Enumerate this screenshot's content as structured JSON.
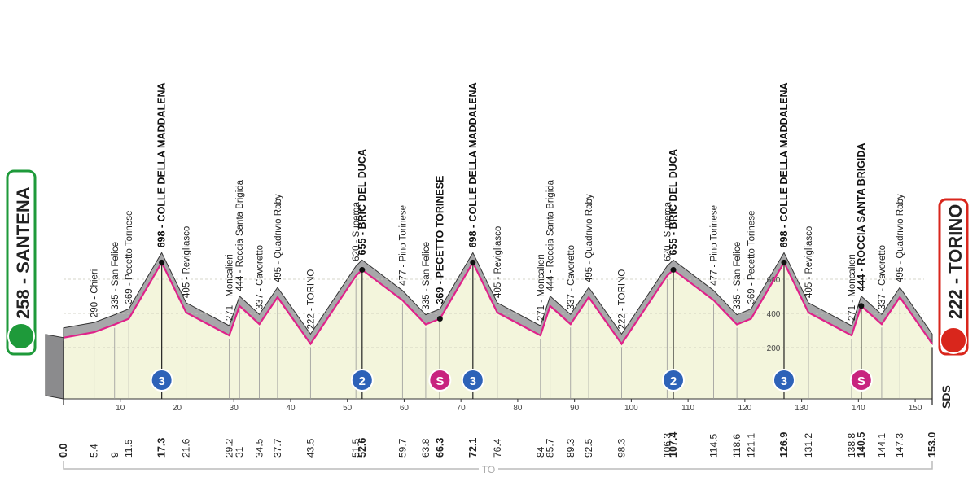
{
  "chart_data": {
    "type": "profile",
    "color": "#e0218a",
    "start": {
      "km": {
        "value": 0,
        "label": "0.0"
      },
      "alt": 258,
      "label": "258 - SANTENA"
    },
    "finish": {
      "km": {
        "value": 153,
        "label": "153.0"
      },
      "alt": 222,
      "label": "222 - TORINO"
    },
    "points": [
      {
        "km": 5.4,
        "alt": 290,
        "label": "290 - Chieri",
        "bold": false
      },
      {
        "km": 9.0,
        "alt": 335,
        "label": "335 - San Felice",
        "bold": false
      },
      {
        "km": 11.5,
        "alt": 369,
        "label": "369 - Pecetto Torinese",
        "bold": false
      },
      {
        "km": 17.3,
        "alt": 698,
        "label": "698 - COLLE DELLA MADDALENA",
        "bold": true
      },
      {
        "km": 21.6,
        "alt": 405,
        "label": "405 - Revigliasco",
        "bold": false
      },
      {
        "km": 29.2,
        "alt": 271,
        "label": "271 - Moncalieri",
        "bold": false
      },
      {
        "km": 31.0,
        "alt": 444,
        "label": "444 - Roccia Santa Brigida",
        "bold": false
      },
      {
        "km": 34.5,
        "alt": 337,
        "label": "337 - Cavoretto",
        "bold": false
      },
      {
        "km": 37.7,
        "alt": 495,
        "label": "495 - Quadrivio Raby",
        "bold": false
      },
      {
        "km": 43.5,
        "alt": 222,
        "label": "222 - TORINO",
        "bold": false
      },
      {
        "km": 51.5,
        "alt": 620,
        "label": "620 - Superga",
        "bold": false
      },
      {
        "km": 52.6,
        "alt": 655,
        "label": "655 - BRIC DEL DUCA",
        "bold": true
      },
      {
        "km": 59.7,
        "alt": 477,
        "label": "477 - Pino Torinese",
        "bold": false
      },
      {
        "km": 63.8,
        "alt": 335,
        "label": "335 - San Felice",
        "bold": false
      },
      {
        "km": 66.3,
        "alt": 369,
        "label": "369 - PECETTO TORINESE",
        "bold": true
      },
      {
        "km": 72.1,
        "alt": 698,
        "label": "698 - COLLE DELLA MADDALENA",
        "bold": true
      },
      {
        "km": 76.4,
        "alt": 405,
        "label": "405 - Revigliasco",
        "bold": false
      },
      {
        "km": 84.0,
        "alt": 271,
        "label": "271 - Moncalieri",
        "bold": false
      },
      {
        "km": 85.7,
        "alt": 444,
        "label": "444 - Roccia Santa Brigida",
        "bold": false
      },
      {
        "km": 89.3,
        "alt": 337,
        "label": "337 - Cavoretto",
        "bold": false
      },
      {
        "km": 92.5,
        "alt": 495,
        "label": "495 - Quadrivio Raby",
        "bold": false
      },
      {
        "km": 98.3,
        "alt": 222,
        "label": "222 - TORINO",
        "bold": false
      },
      {
        "km": 106.3,
        "alt": 620,
        "label": "620 - Superga",
        "bold": false
      },
      {
        "km": 107.4,
        "alt": 655,
        "label": "655 - BRIC DEL DUCA",
        "bold": true
      },
      {
        "km": 114.5,
        "alt": 477,
        "label": "477 - Pino Torinese",
        "bold": false
      },
      {
        "km": 118.6,
        "alt": 335,
        "label": "335 - San Felice",
        "bold": false
      },
      {
        "km": 121.1,
        "alt": 369,
        "label": "369 - Pecetto Torinese",
        "bold": false
      },
      {
        "km": 126.9,
        "alt": 698,
        "label": "698 - COLLE DELLA MADDALENA",
        "bold": true
      },
      {
        "km": 131.2,
        "alt": 405,
        "label": "405 - Revigliasco",
        "bold": false
      },
      {
        "km": 138.8,
        "alt": 271,
        "label": "271 - Moncalieri",
        "bold": false
      },
      {
        "km": 140.5,
        "alt": 444,
        "label": "444 - ROCCIA SANTA BRIGIDA",
        "bold": true
      },
      {
        "km": 144.1,
        "alt": 337,
        "label": "337 - Cavoretto",
        "bold": false
      },
      {
        "km": 147.3,
        "alt": 495,
        "label": "495 - Quadrivio Raby",
        "bold": false
      }
    ],
    "climbs": [
      {
        "km": 17.3,
        "label": "3",
        "color": "#2d62b8"
      },
      {
        "km": 52.6,
        "label": "2",
        "color": "#2d62b8"
      },
      {
        "km": 66.3,
        "label": "S",
        "color": "#c8247f"
      },
      {
        "km": 72.1,
        "label": "3",
        "color": "#2d62b8"
      },
      {
        "km": 107.4,
        "label": "2",
        "color": "#2d62b8"
      },
      {
        "km": 126.9,
        "label": "3",
        "color": "#2d62b8"
      },
      {
        "km": 140.5,
        "label": "S",
        "color": "#c8247f"
      }
    ],
    "xlim": [
      0,
      153
    ],
    "xticks": [
      10,
      20,
      30,
      40,
      50,
      60,
      70,
      80,
      90,
      100,
      110,
      120,
      130,
      140,
      150
    ],
    "ylim": [
      -100,
      800
    ],
    "yticks": [
      200,
      400,
      600
    ],
    "circuit_label": "TO",
    "brand": "SDS"
  }
}
